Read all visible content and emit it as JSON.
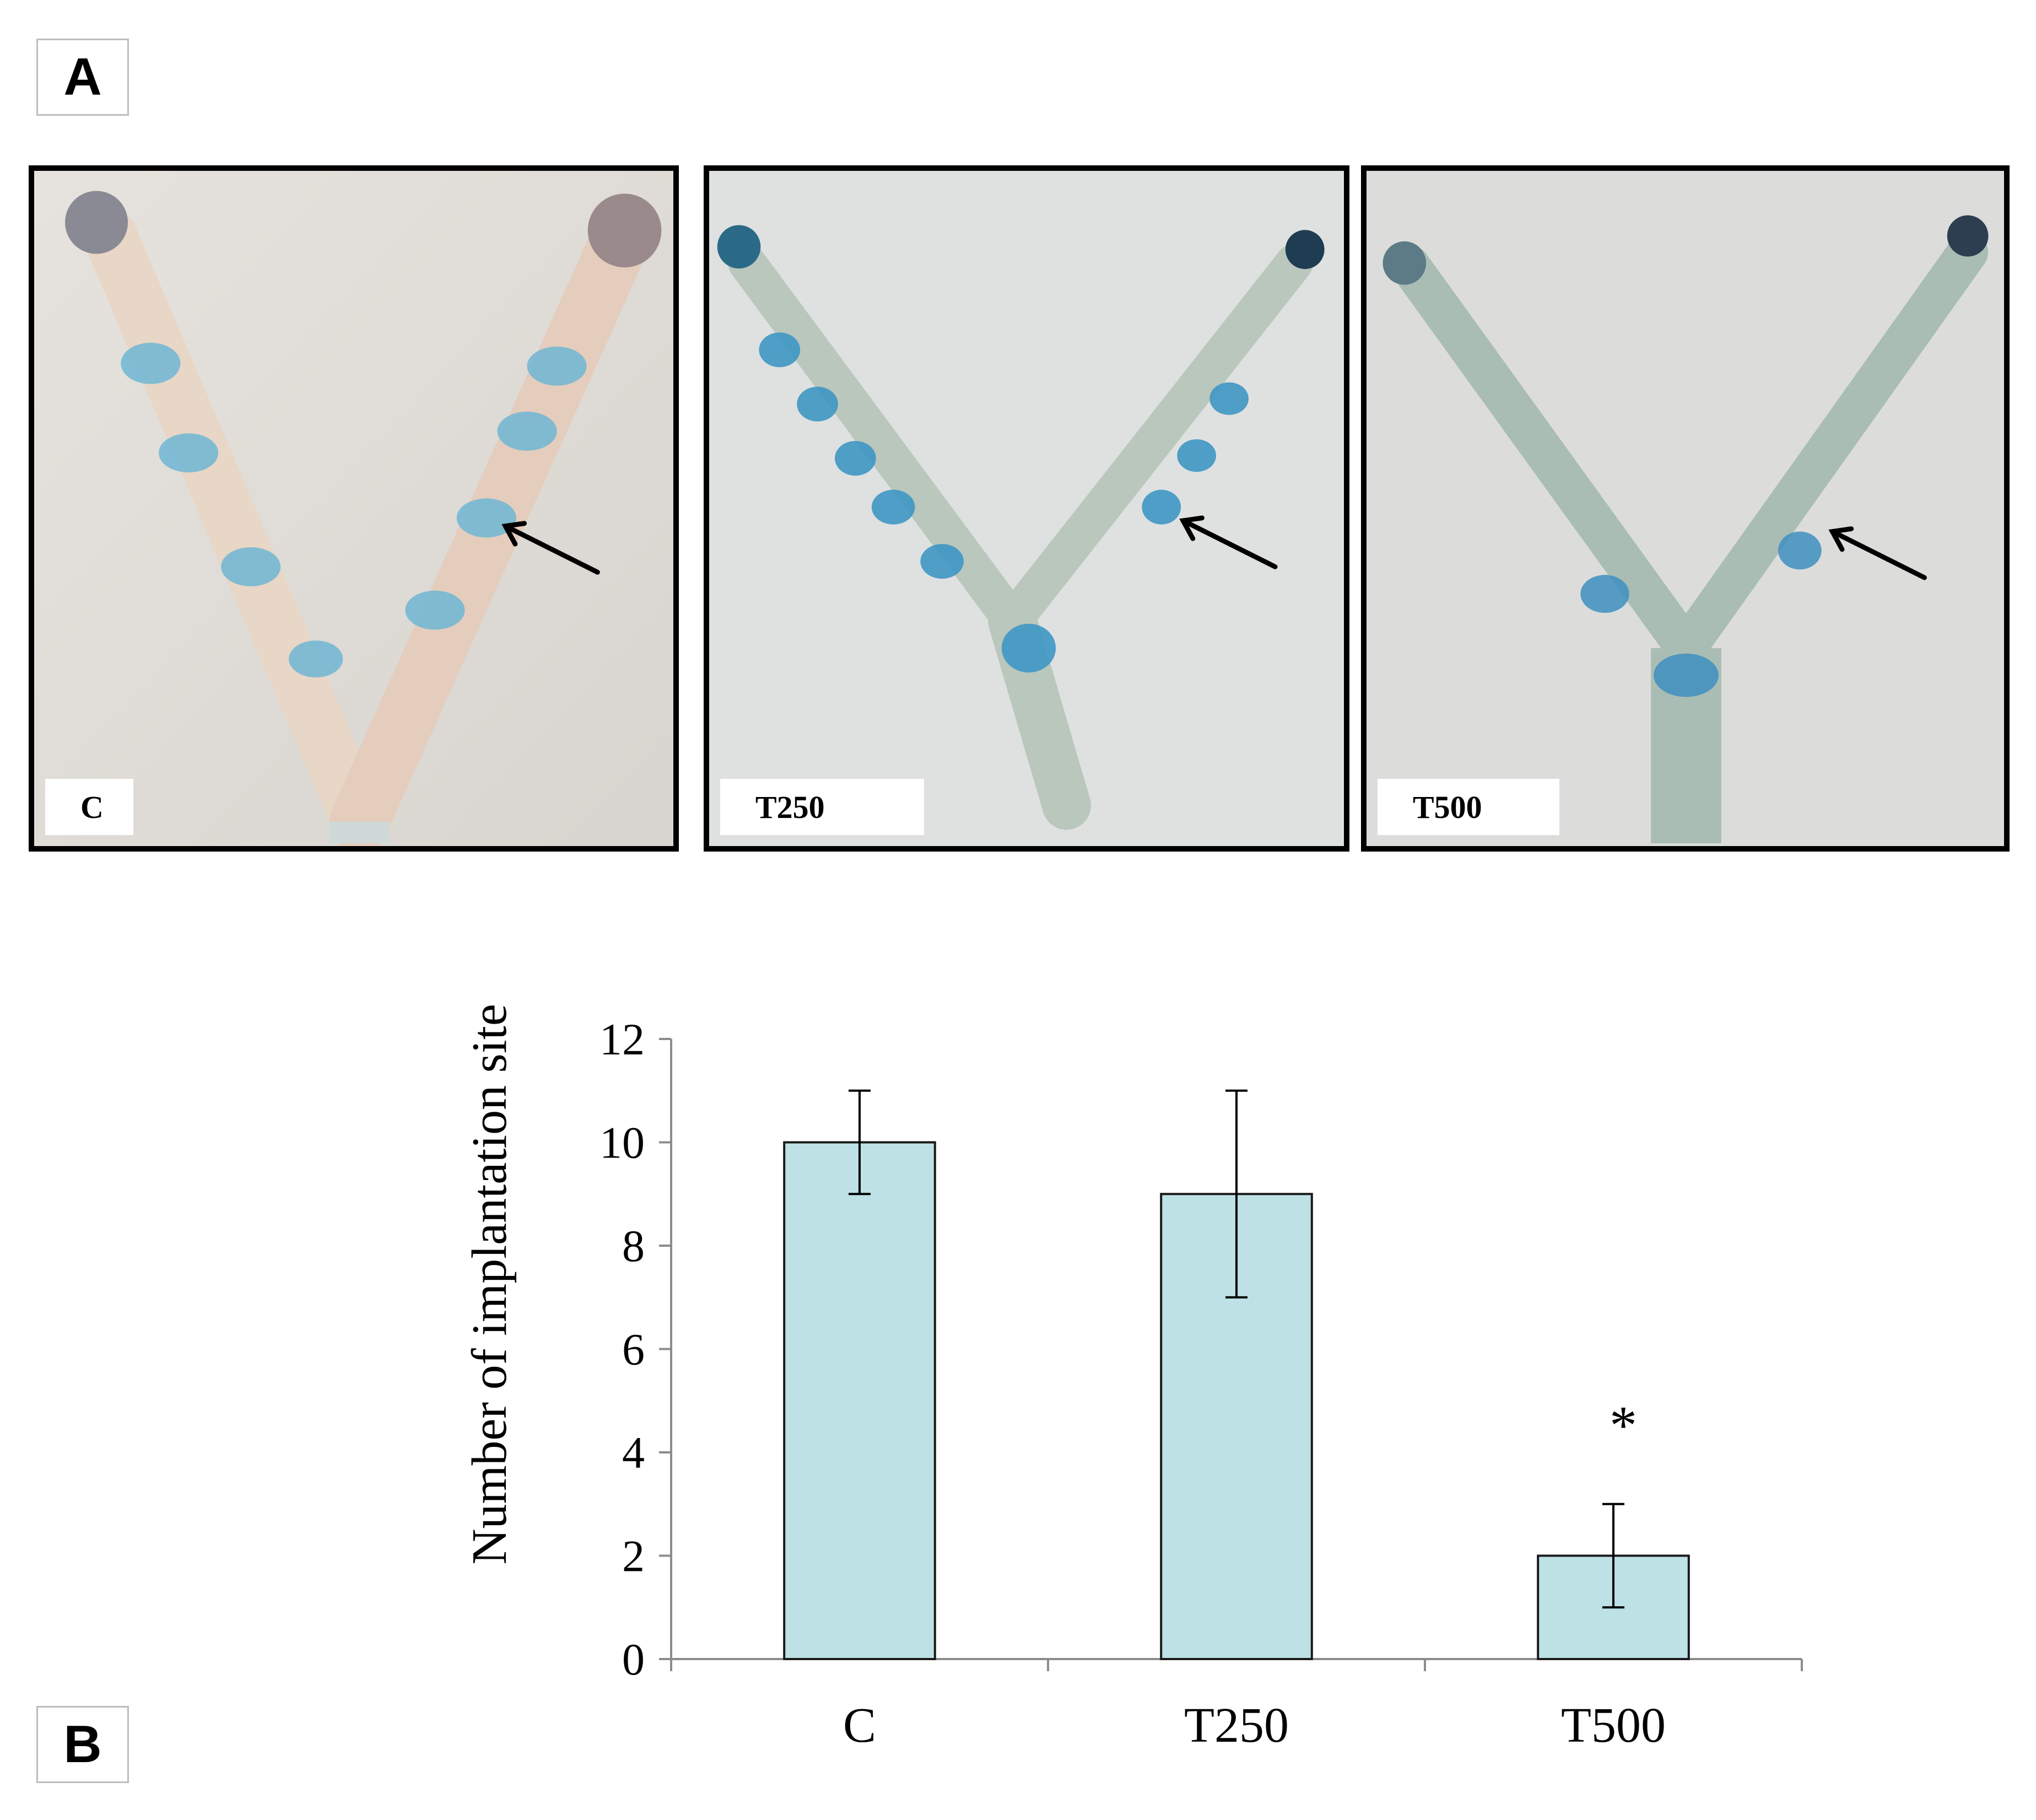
{
  "figure": {
    "panel_a_label": "A",
    "panel_b_label": "B",
    "photos": [
      {
        "label": "C"
      },
      {
        "label": "T250"
      },
      {
        "label": "T500"
      }
    ]
  },
  "chart_data": {
    "type": "bar",
    "categories": [
      "C",
      "T250",
      "T500"
    ],
    "values": [
      10,
      9,
      2
    ],
    "error_low": [
      9,
      7,
      1
    ],
    "error_high": [
      11,
      11,
      3
    ],
    "annotations": [
      "",
      "",
      "*"
    ],
    "title": "",
    "xlabel": "",
    "ylabel": "Number of implantation site",
    "ylim": [
      0,
      12
    ],
    "yticks": [
      "0",
      "2",
      "4",
      "6",
      "8",
      "10",
      "12"
    ],
    "grid": false,
    "bar_color": "#bde1e4"
  }
}
